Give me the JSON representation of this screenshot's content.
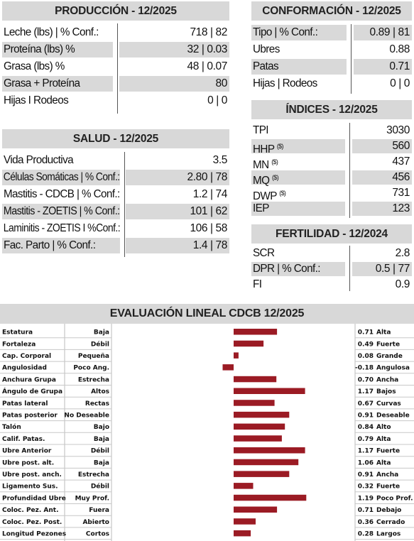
{
  "produccion": {
    "title": "PRODUCCIÓN - 12/2025",
    "rows": [
      {
        "label": "Leche (lbs) | % Conf.:",
        "value": "718 | 82"
      },
      {
        "label": "Proteína (lbs) %",
        "value": "32 | 0.03"
      },
      {
        "label": "Grasa (lbs) %",
        "value": "48 | 0.07"
      },
      {
        "label": "Grasa + Proteína",
        "value": "80"
      },
      {
        "label": "Hijas I Rodeos",
        "value": "0 | 0"
      }
    ]
  },
  "salud": {
    "title": "SALUD - 12/2025",
    "rows": [
      {
        "label": "Vida Productiva",
        "value": "3.5"
      },
      {
        "label": "Células Somáticas | % Conf.:",
        "value": "2.80 | 78"
      },
      {
        "label": "Mastitis - CDCB | % Conf.:",
        "value": "1.2 | 74"
      },
      {
        "label": "Mastitis - ZOETIS | % Conf.:",
        "value": "101 | 62"
      },
      {
        "label": "Laminitis - ZOETIS I %Conf.:",
        "value": "106  | 58"
      },
      {
        "label": "Fac. Parto | % Conf.:",
        "value": "1.4  | 78"
      }
    ]
  },
  "conformacion": {
    "title": "CONFORMACIÓN - 12/2025",
    "rows": [
      {
        "label": "Tipo |  % Conf.:",
        "value": "0.89 | 81"
      },
      {
        "label": "Ubres",
        "value": "0.88"
      },
      {
        "label": "Patas",
        "value": "0.71"
      },
      {
        "label": "Hijas | Rodeos",
        "value": "0 | 0"
      }
    ]
  },
  "indices": {
    "title": "ÍNDICES - 12/2025",
    "rows": [
      {
        "label": "TPI",
        "sup": "",
        "value": "3030"
      },
      {
        "label": "HHP",
        "sup": "($)",
        "value": "560"
      },
      {
        "label": "MN",
        "sup": "($)",
        "value": "437"
      },
      {
        "label": "MQ",
        "sup": "($)",
        "value": "456"
      },
      {
        "label": "DWP",
        "sup": "($)",
        "value": "731"
      },
      {
        "label": "IEP",
        "sup": "",
        "value": "123"
      }
    ]
  },
  "fertilidad": {
    "title": "FERTILIDAD - 12/2024",
    "rows": [
      {
        "label": "SCR",
        "value": "2.8"
      },
      {
        "label": "DPR | % Conf.:",
        "value": "0.5 | 77"
      },
      {
        "label": "FI",
        "value": "0.9"
      }
    ]
  },
  "lineal": {
    "title": "EVALUACIÓN LINEAL CDCB 12/2025",
    "bar_color": "#9b1b24"
  },
  "chart_data": {
    "type": "bar",
    "orientation": "horizontal",
    "title": "EVALUACIÓN LINEAL CDCB 12/2025",
    "xlim": [
      -0.3,
      1.3
    ],
    "traits": [
      {
        "name": "Estatura",
        "low": "Baja",
        "value": 0.71,
        "high": "Alta"
      },
      {
        "name": "Fortaleza",
        "low": "Débil",
        "value": 0.49,
        "high": "Fuerte"
      },
      {
        "name": "Cap. Corporal",
        "low": "Pequeña",
        "value": 0.08,
        "high": "Grande"
      },
      {
        "name": "Angulosidad",
        "low": "Poco Ang.",
        "value": -0.18,
        "high": "Angulosa"
      },
      {
        "name": "Anchura Grupa",
        "low": "Estrecha",
        "value": 0.7,
        "high": "Ancha"
      },
      {
        "name": "Ángulo de Grupa",
        "low": "Altos",
        "value": 1.17,
        "high": "Bajos"
      },
      {
        "name": "Patas lateral",
        "low": "Rectas",
        "value": 0.67,
        "high": "Curvas"
      },
      {
        "name": "Patas posterior",
        "low": "No Deseable",
        "value": 0.91,
        "high": "Deseable"
      },
      {
        "name": "Talón",
        "low": "Bajo",
        "value": 0.84,
        "high": "Alto"
      },
      {
        "name": "Calif. Patas.",
        "low": "Baja",
        "value": 0.79,
        "high": "Alta"
      },
      {
        "name": "Ubre Anterior",
        "low": "Débil",
        "value": 1.17,
        "high": "Fuerte"
      },
      {
        "name": "Ubre post. alt.",
        "low": "Baja",
        "value": 1.06,
        "high": "Alta"
      },
      {
        "name": "Ubre post. anch.",
        "low": "Estrecha",
        "value": 0.91,
        "high": "Ancha"
      },
      {
        "name": "Ligamento Sus.",
        "low": "Débil",
        "value": 0.32,
        "high": "Fuerte"
      },
      {
        "name": "Profundidad Ubre",
        "low": "Muy Prof.",
        "value": 1.19,
        "high": "Poco Prof."
      },
      {
        "name": "Coloc. Pez. Ant.",
        "low": "Fuera",
        "value": 0.71,
        "high": "Debajo"
      },
      {
        "name": "Coloc. Pez. Post.",
        "low": "Abierto",
        "value": 0.36,
        "high": "Cerrado"
      },
      {
        "name": "Longitud Pezones",
        "low": "Cortos",
        "value": 0.28,
        "high": "Largos"
      }
    ]
  }
}
